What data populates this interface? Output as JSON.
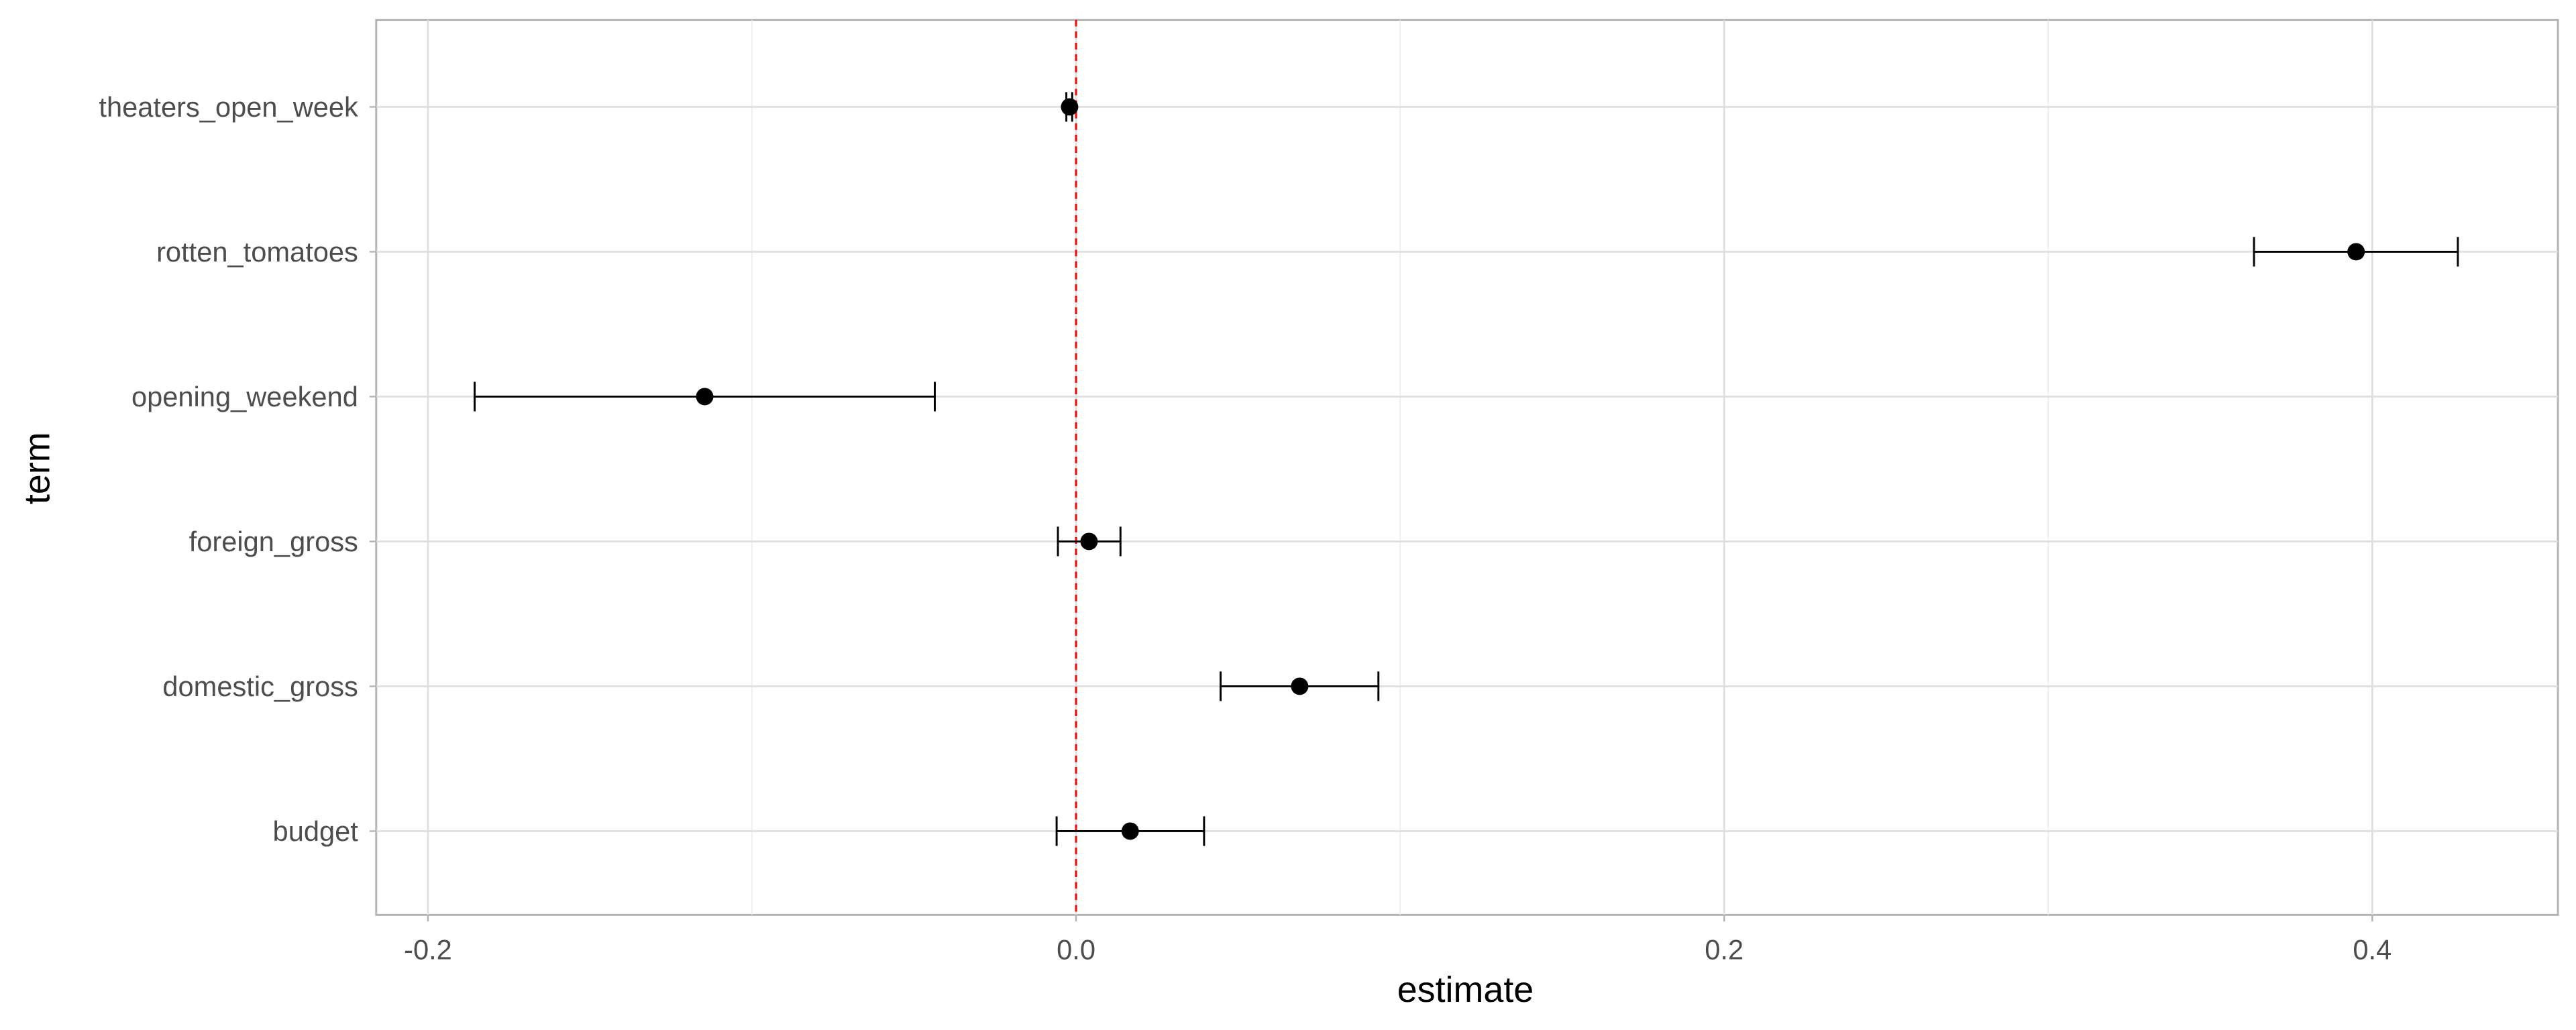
{
  "chart_data": {
    "type": "scatter",
    "subtype": "coefficient-plot-with-error-bars",
    "title": "",
    "xlabel": "estimate",
    "ylabel": "term",
    "xlim": [
      -0.213,
      0.45
    ],
    "x_ticks": [
      -0.2,
      0.0,
      0.2,
      0.4
    ],
    "x_tick_labels": [
      "-0.2",
      "0.0",
      "0.2",
      "0.4"
    ],
    "grid": true,
    "reference_line": {
      "x": 0,
      "style": "dashed",
      "color": "#ff0000"
    },
    "terms": [
      "theaters_open_week",
      "rotten_tomatoes",
      "opening_weekend",
      "foreign_gross",
      "domestic_gross",
      "budget"
    ],
    "estimates": [
      -0.002,
      0.395,
      -0.1146,
      0.004,
      0.069,
      0.0167
    ],
    "conf_low": [
      -0.003,
      0.3635,
      -0.1856,
      -0.0056,
      0.0446,
      -0.006
    ],
    "conf_high": [
      -0.0012,
      0.4264,
      -0.0436,
      0.0137,
      0.0933,
      0.0395
    ]
  }
}
